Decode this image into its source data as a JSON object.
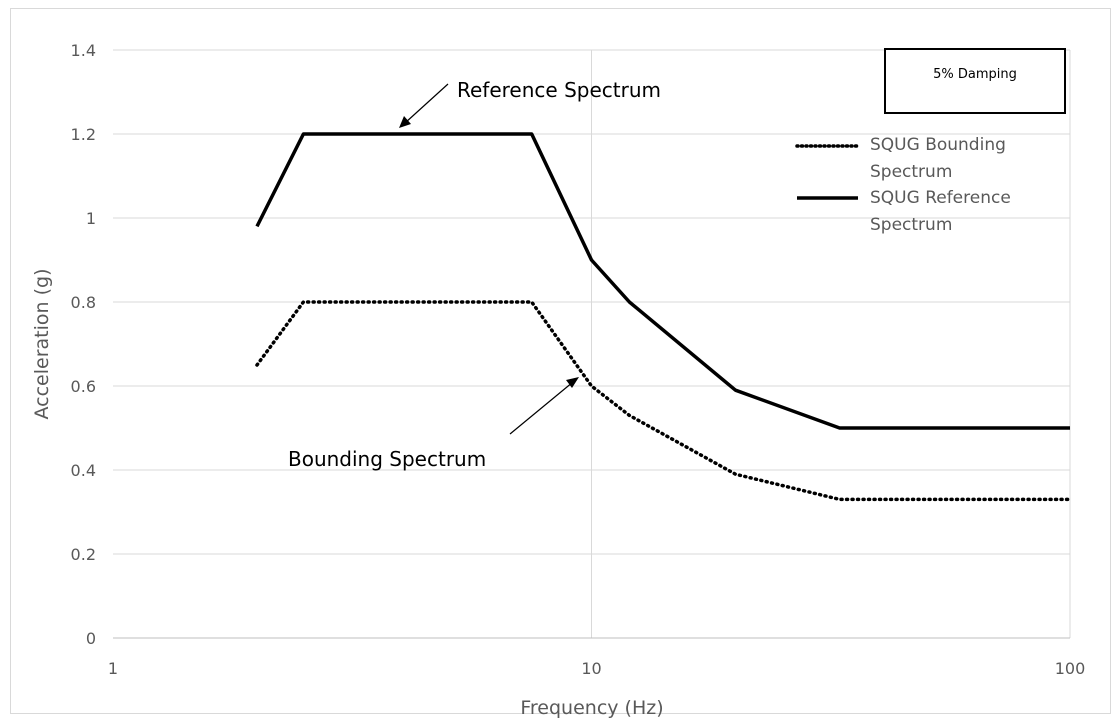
{
  "chart_data": {
    "type": "line",
    "x_scale": "log",
    "xlabel": "Frequency (Hz)",
    "ylabel": "Acceleration (g)",
    "xlim": [
      1,
      100
    ],
    "ylim": [
      0,
      1.4
    ],
    "x_ticks": [
      1,
      10,
      100
    ],
    "x_tick_labels": [
      "1",
      "10",
      "100"
    ],
    "y_ticks": [
      0,
      0.2,
      0.4,
      0.6,
      0.8,
      1,
      1.2,
      1.4
    ],
    "y_tick_labels": [
      "0",
      "0.2",
      "0.4",
      "0.6",
      "0.8",
      "1",
      "1.2",
      "1.4"
    ],
    "grid": true,
    "legend_position": "top-right",
    "series": [
      {
        "name": "SQUG Bounding Spectrum",
        "style": "dotted",
        "color": "#000000",
        "x": [
          2,
          2.5,
          7.5,
          10,
          12,
          20,
          33,
          100
        ],
        "y": [
          0.65,
          0.8,
          0.8,
          0.6,
          0.53,
          0.39,
          0.33,
          0.33
        ]
      },
      {
        "name": "SQUG Reference Spectrum",
        "style": "solid",
        "color": "#000000",
        "x": [
          2,
          2.5,
          7.5,
          10,
          12,
          20,
          33,
          100
        ],
        "y": [
          0.98,
          1.2,
          1.2,
          0.9,
          0.8,
          0.59,
          0.5,
          0.5
        ]
      }
    ],
    "legend": {
      "line1": [
        "SQUG Bounding",
        "Spectrum"
      ],
      "line2": [
        "SQUG Reference",
        "Spectrum"
      ]
    },
    "annotations": {
      "damping": "5% Damping",
      "reference": "Reference Spectrum",
      "bounding": "Bounding Spectrum"
    }
  }
}
